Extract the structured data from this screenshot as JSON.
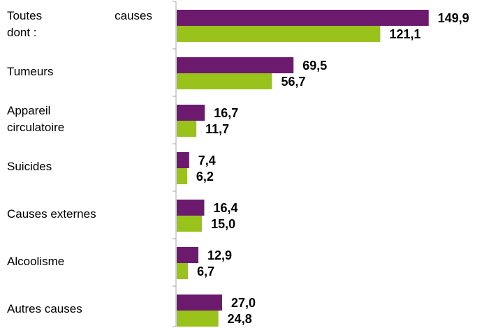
{
  "colors": {
    "series_a": "#6b1a6e",
    "series_b": "#99c21a",
    "axis": "#a6a6a6",
    "label": "#000000"
  },
  "chart_data": {
    "type": "bar",
    "orientation": "horizontal",
    "title": "",
    "xlabel": "",
    "ylabel": "",
    "xlim": [
      0,
      150
    ],
    "grid": false,
    "legend": "none",
    "decimal_separator": ",",
    "categories": [
      "Toutes causes dont :",
      "Tumeurs",
      "Appareil circulatoire",
      "Suicides",
      "Causes externes",
      "Alcoolisme",
      "Autres causes"
    ],
    "category_lines": [
      [
        "Toutes causes",
        "dont :"
      ],
      [
        "Tumeurs"
      ],
      [
        "Appareil",
        "circulatoire"
      ],
      [
        "Suicides"
      ],
      [
        "Causes externes"
      ],
      [
        "Alcoolisme"
      ],
      [
        "Autres causes"
      ]
    ],
    "series": [
      {
        "values": [
          149.9,
          69.5,
          16.7,
          7.4,
          16.4,
          12.9,
          27.0
        ],
        "labels": [
          "149,9",
          "69,5",
          "16,7",
          "7,4",
          "16,4",
          "12,9",
          "27,0"
        ]
      },
      {
        "values": [
          121.1,
          56.7,
          11.7,
          6.2,
          15.0,
          6.7,
          24.8
        ],
        "labels": [
          "121,1",
          "56,7",
          "11,7",
          "6,2",
          "15,0",
          "6,7",
          "24,8"
        ]
      }
    ]
  }
}
